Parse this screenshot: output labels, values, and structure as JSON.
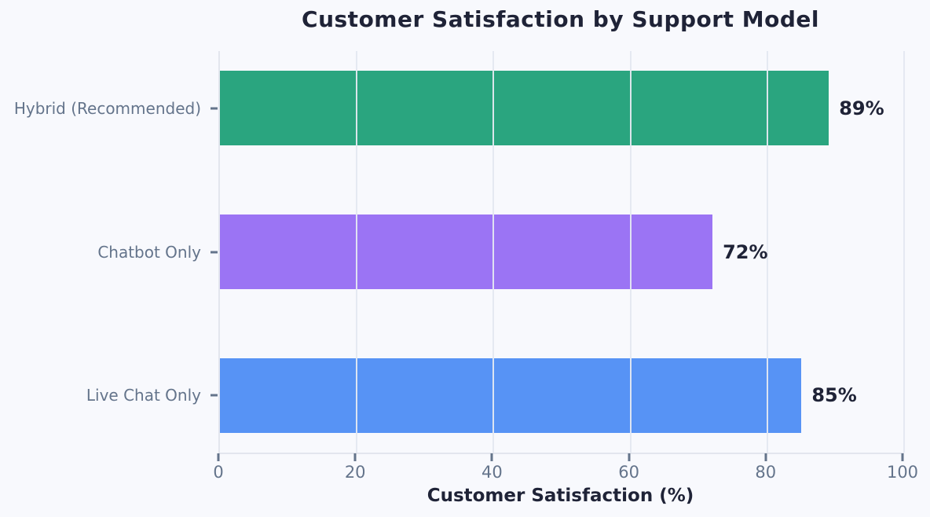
{
  "chart_data": {
    "type": "bar",
    "orientation": "horizontal",
    "title": "Customer Satisfaction by Support Model",
    "xlabel": "Customer Satisfaction (%)",
    "ylabel": "",
    "categories": [
      "Hybrid (Recommended)",
      "Chatbot Only",
      "Live Chat Only"
    ],
    "values": [
      89,
      72,
      85
    ],
    "value_labels": [
      "89%",
      "72%",
      "85%"
    ],
    "bar_colors": [
      "#2aa57f",
      "#9b74f4",
      "#5793f5"
    ],
    "xlim": [
      0,
      100
    ],
    "xticks": [
      0,
      20,
      40,
      60,
      80,
      100
    ],
    "grid": true,
    "legend_position": "none"
  },
  "colors": {
    "background": "#f8f9fd",
    "title_text": "#1f2337",
    "value_text": "#1f2337",
    "tick_text": "#64748b",
    "spine": "#e3e6ee",
    "gridline": "#e4e8f1"
  }
}
